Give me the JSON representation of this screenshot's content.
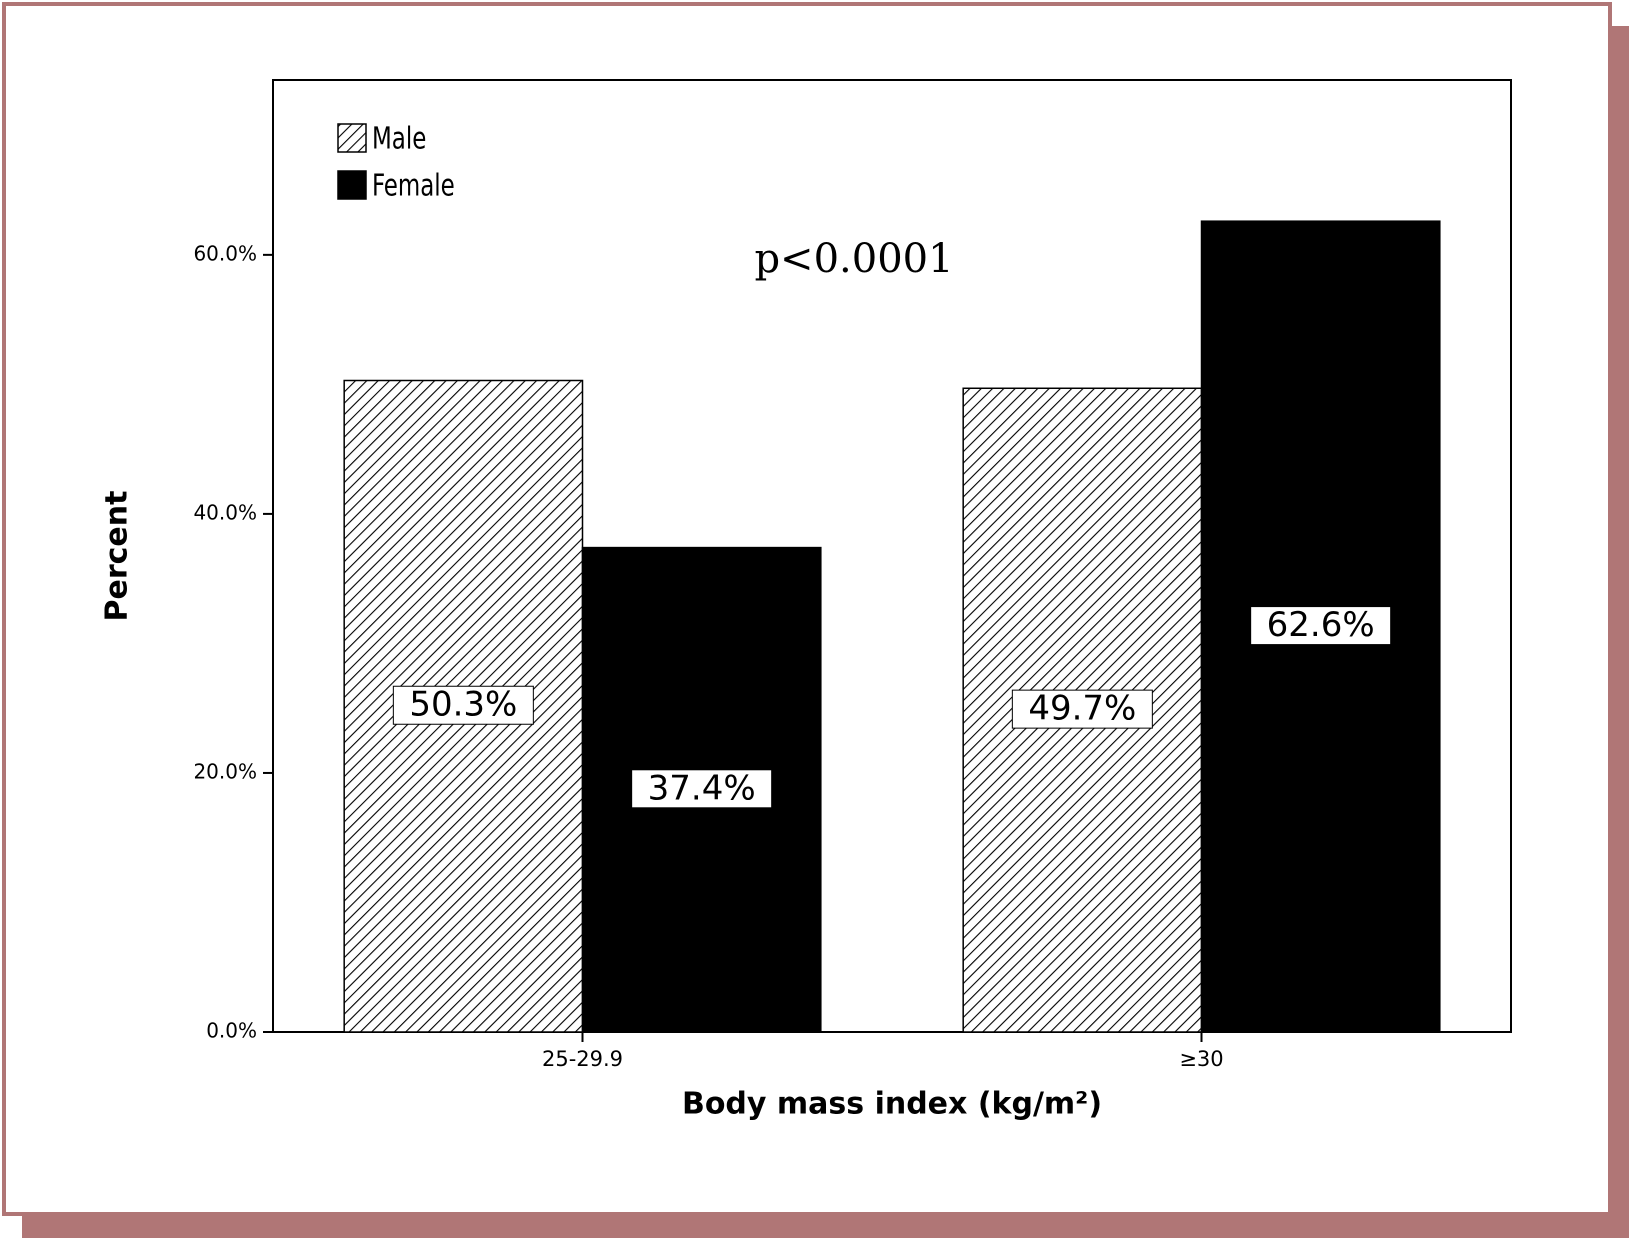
{
  "chart_data": {
    "type": "bar",
    "categories": [
      "25-29.9",
      "≥30"
    ],
    "series": [
      {
        "name": "Male",
        "color": "#000000",
        "pattern": "hatch",
        "values": [
          50.3,
          49.7
        ],
        "value_labels": [
          "50.3%",
          "49.7%"
        ]
      },
      {
        "name": "Female",
        "color": "#000000",
        "pattern": "solid",
        "values": [
          37.4,
          62.6
        ],
        "value_labels": [
          "37.4%",
          "62.6%"
        ]
      }
    ],
    "ylim": [
      0,
      73.5
    ],
    "yticks": [
      {
        "value": 0,
        "label": "0.0%"
      },
      {
        "value": 20,
        "label": "20.0%"
      },
      {
        "value": 40,
        "label": "40.0%"
      },
      {
        "value": 60,
        "label": "60.0%"
      }
    ],
    "y_label": "Percent",
    "x_label": "Body mass index (kg/m²)",
    "annotation": "p<0.0001",
    "legend": "top-left",
    "grid": false
  }
}
